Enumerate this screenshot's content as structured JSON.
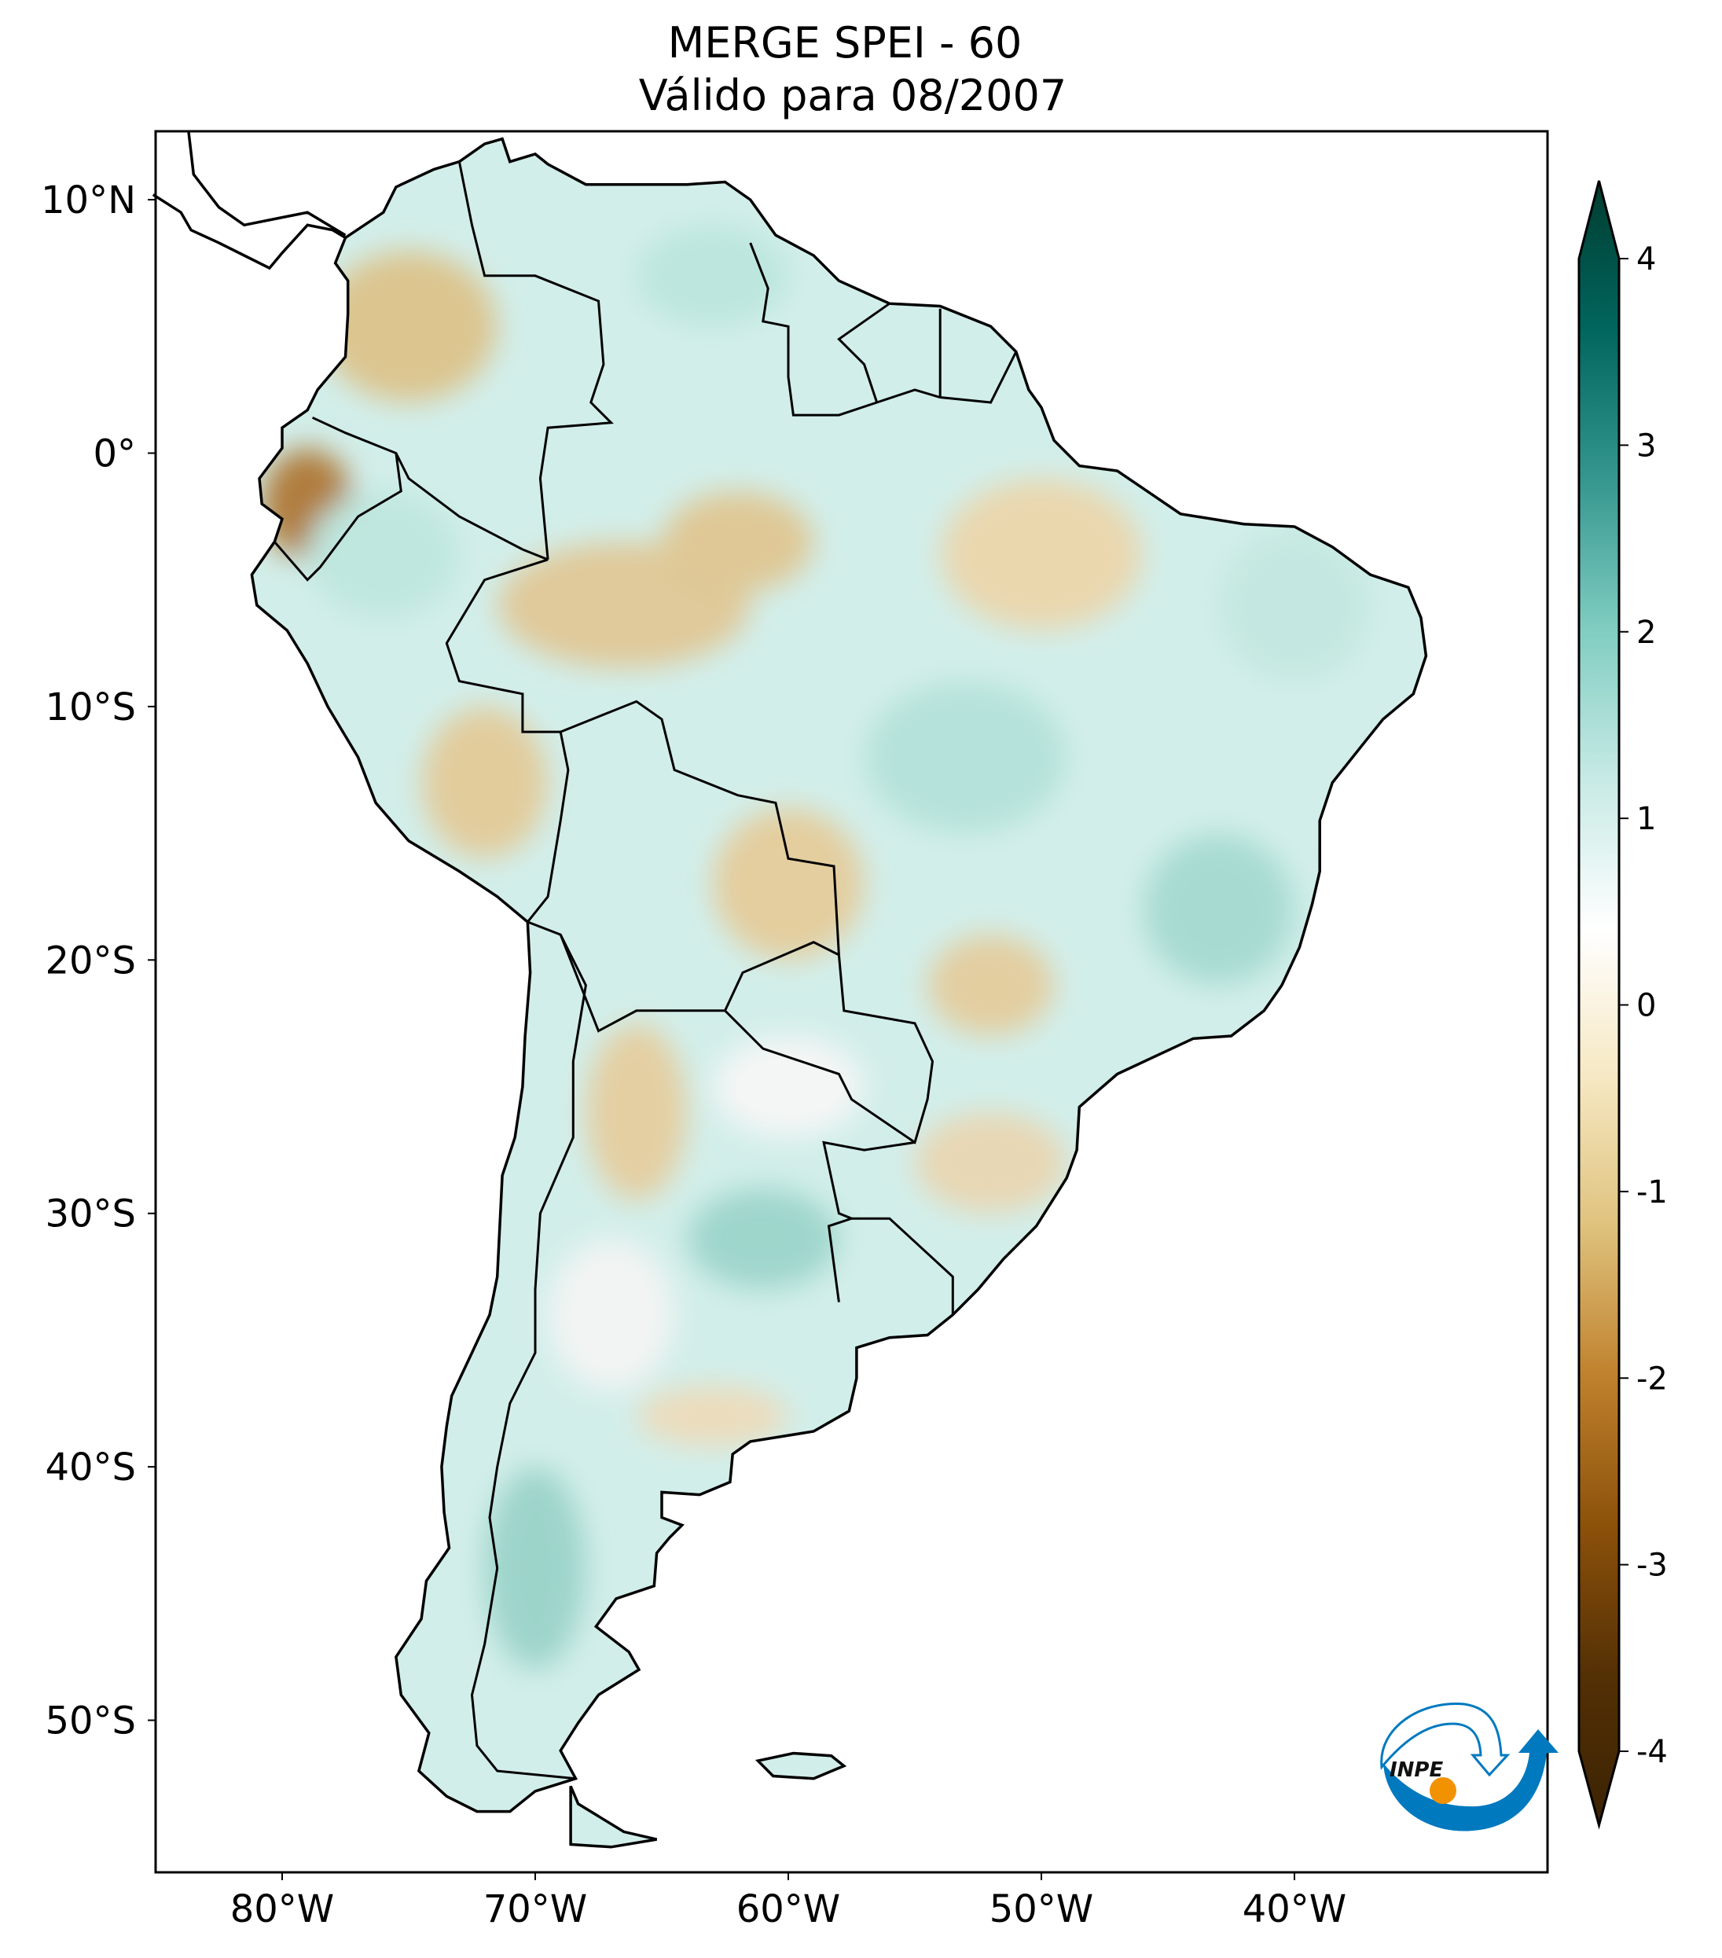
{
  "title": {
    "line1": "MERGE   SPEI - 60",
    "line2": "Válido para 08/2007"
  },
  "chart_data": {
    "type": "heatmap",
    "title": "MERGE   SPEI - 60",
    "subtitle": "Válido para 08/2007",
    "projection": "plate-carree",
    "xlim": [
      -85,
      -30
    ],
    "ylim": [
      -56,
      12.7
    ],
    "x_ticks": [
      {
        "value": -80,
        "label": "80°W"
      },
      {
        "value": -70,
        "label": "70°W"
      },
      {
        "value": -60,
        "label": "60°W"
      },
      {
        "value": -50,
        "label": "50°W"
      },
      {
        "value": -40,
        "label": "40°W"
      }
    ],
    "y_ticks": [
      {
        "value": 10,
        "label": "10°N"
      },
      {
        "value": 0,
        "label": "0°"
      },
      {
        "value": -10,
        "label": "10°S"
      },
      {
        "value": -20,
        "label": "20°S"
      },
      {
        "value": -30,
        "label": "30°S"
      },
      {
        "value": -40,
        "label": "40°S"
      },
      {
        "value": -50,
        "label": "50°S"
      }
    ],
    "colorbar": {
      "range": [
        -4,
        4
      ],
      "extend": "both",
      "colormap": "BrBG",
      "ticks": [
        {
          "value": 4,
          "label": "4"
        },
        {
          "value": 3,
          "label": "3"
        },
        {
          "value": 2,
          "label": "2"
        },
        {
          "value": 1,
          "label": "1"
        },
        {
          "value": 0,
          "label": "0"
        },
        {
          "value": -1,
          "label": "-1"
        },
        {
          "value": -2,
          "label": "-2"
        },
        {
          "value": -3,
          "label": "-3"
        },
        {
          "value": -4,
          "label": "-4"
        }
      ],
      "colors": [
        "#3b2304",
        "#543005",
        "#8c510a",
        "#bf812d",
        "#dfc27d",
        "#f6e8c3",
        "#ffffff",
        "#c7eae5",
        "#80cdc1",
        "#35978f",
        "#01665e",
        "#003c30"
      ]
    },
    "grid": false,
    "legend": "colorbar-right"
  },
  "logo": {
    "text": "INPE",
    "blue": "#0079bf",
    "orange": "#f39200"
  }
}
